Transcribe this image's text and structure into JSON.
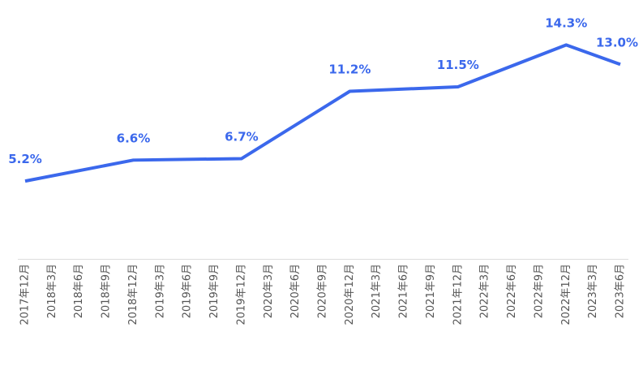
{
  "chart_data": {
    "type": "line",
    "categories": [
      "2017年12月",
      "2018年3月",
      "2018年6月",
      "2018年9月",
      "2018年12月",
      "2019年3月",
      "2019年6月",
      "2019年9月",
      "2019年12月",
      "2020年3月",
      "2020年6月",
      "2020年9月",
      "2020年12月",
      "2021年3月",
      "2021年6月",
      "2021年9月",
      "2021年12月",
      "2022年3月",
      "2022年6月",
      "2022年9月",
      "2022年12月",
      "2023年3月",
      "2023年6月"
    ],
    "series": [
      {
        "color": "#3b68ec",
        "x": [
          "2017年12月",
          "2018年12月",
          "2019年12月",
          "2020年12月",
          "2021年12月",
          "2022年12月",
          "2023年6月"
        ],
        "values": [
          5.2,
          6.6,
          6.7,
          11.2,
          11.5,
          14.3,
          13.0
        ],
        "value_labels": [
          "5.2%",
          "6.6%",
          "6.7%",
          "11.2%",
          "11.5%",
          "14.3%",
          "13.0%"
        ]
      }
    ],
    "ylim": [
      0,
      16
    ]
  }
}
